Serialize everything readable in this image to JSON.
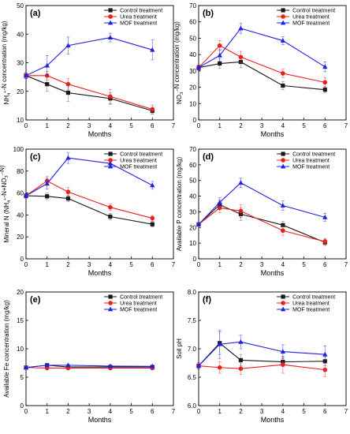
{
  "colors": {
    "control": "#1a1a1a",
    "urea": "#e8201e",
    "mof": "#1f1fe8"
  },
  "chart_data": [
    {
      "panel": "(a)",
      "type": "line",
      "ylabel_parts": [
        "NH",
        "4",
        "+",
        "-N concentration (mg/kg)"
      ],
      "xlabel": "Months",
      "xlim": [
        0,
        7
      ],
      "ylim": [
        10,
        50
      ],
      "xticks": [
        0,
        1,
        2,
        3,
        4,
        5,
        6,
        7
      ],
      "yticks": [
        10,
        20,
        30,
        40,
        50
      ],
      "legend_position": "top-right",
      "series": [
        {
          "name": "Control treatment",
          "color": "#1a1a1a",
          "marker": "square",
          "x": [
            0,
            1,
            2,
            4,
            6
          ],
          "y": [
            25.5,
            22.5,
            19.5,
            17.5,
            13.2
          ],
          "err": [
            1,
            2.5,
            3,
            2,
            1.2
          ]
        },
        {
          "name": "Urea treatment",
          "color": "#e8201e",
          "marker": "circle",
          "x": [
            0,
            1,
            2,
            4,
            6
          ],
          "y": [
            25.5,
            25.5,
            22.5,
            18.2,
            13.7
          ],
          "err": [
            1,
            1.5,
            2,
            2.5,
            1.5
          ]
        },
        {
          "name": "MOF treatment",
          "color": "#1f1fe8",
          "marker": "triangle",
          "x": [
            0,
            1,
            2,
            4,
            6
          ],
          "y": [
            25.5,
            29,
            36,
            38.8,
            34.5
          ],
          "err": [
            1,
            3.5,
            3,
            1.5,
            3.5
          ]
        }
      ]
    },
    {
      "panel": "(b)",
      "type": "line",
      "ylabel_parts": [
        "NO",
        "3",
        "-",
        "-N concentration (mg/kg)"
      ],
      "xlabel": "Months",
      "xlim": [
        0,
        7
      ],
      "ylim": [
        0,
        70
      ],
      "xticks": [
        0,
        1,
        2,
        3,
        4,
        5,
        6,
        7
      ],
      "yticks": [
        0,
        10,
        20,
        30,
        40,
        50,
        60,
        70
      ],
      "legend_position": "top-right",
      "series": [
        {
          "name": "Control treatment",
          "color": "#1a1a1a",
          "marker": "square",
          "x": [
            0,
            1,
            2,
            4,
            6
          ],
          "y": [
            32,
            34.5,
            35.5,
            21,
            18.5
          ],
          "err": [
            1.5,
            3,
            3.5,
            2.5,
            2
          ]
        },
        {
          "name": "Urea treatment",
          "color": "#e8201e",
          "marker": "circle",
          "x": [
            0,
            1,
            2,
            4,
            6
          ],
          "y": [
            32,
            45.5,
            38.5,
            28.5,
            23
          ],
          "err": [
            1.5,
            3,
            3.5,
            2.5,
            3
          ]
        },
        {
          "name": "MOF treatment",
          "color": "#1f1fe8",
          "marker": "triangle",
          "x": [
            0,
            1,
            2,
            4,
            6
          ],
          "y": [
            32,
            39.5,
            56,
            48.5,
            32.5
          ],
          "err": [
            1.5,
            3.5,
            3,
            2.5,
            3
          ]
        }
      ]
    },
    {
      "panel": "(c)",
      "type": "line",
      "ylabel_parts": [
        "Mineral N (NH",
        "4",
        "+",
        "-N+NO",
        "3",
        "-",
        "-N)"
      ],
      "xlabel": "Months",
      "xlim": [
        0,
        7
      ],
      "ylim": [
        0,
        100
      ],
      "xticks": [
        0,
        1,
        2,
        3,
        4,
        5,
        6,
        7
      ],
      "yticks": [
        0,
        20,
        40,
        60,
        80,
        100
      ],
      "legend_position": "top-right",
      "series": [
        {
          "name": "Control treatment",
          "color": "#1a1a1a",
          "marker": "square",
          "x": [
            0,
            1,
            2,
            4,
            6
          ],
          "y": [
            57.5,
            57,
            55,
            38.5,
            31.5
          ],
          "err": [
            2,
            3,
            3,
            3,
            2.5
          ]
        },
        {
          "name": "Urea treatment",
          "color": "#e8201e",
          "marker": "circle",
          "x": [
            0,
            1,
            2,
            4,
            6
          ],
          "y": [
            57.5,
            71,
            61,
            47,
            37
          ],
          "err": [
            2,
            4,
            4,
            3,
            2.5
          ]
        },
        {
          "name": "MOF treatment",
          "color": "#1f1fe8",
          "marker": "triangle",
          "x": [
            0,
            1,
            2,
            4,
            6
          ],
          "y": [
            57.5,
            68.5,
            92,
            87,
            67
          ],
          "err": [
            2,
            5,
            5,
            4,
            3.5
          ]
        }
      ]
    },
    {
      "panel": "(d)",
      "type": "line",
      "ylabel_parts": [
        "Available P concentration (mg/kg)"
      ],
      "xlabel": "Months",
      "xlim": [
        0,
        7
      ],
      "ylim": [
        0,
        70
      ],
      "xticks": [
        0,
        1,
        2,
        3,
        4,
        5,
        6,
        7
      ],
      "yticks": [
        0,
        10,
        20,
        30,
        40,
        50,
        60,
        70
      ],
      "legend_position": "top-right",
      "series": [
        {
          "name": "Control treatment",
          "color": "#1a1a1a",
          "marker": "square",
          "x": [
            0,
            1,
            2,
            4,
            6
          ],
          "y": [
            22,
            34.5,
            28.5,
            21.5,
            10.5
          ],
          "err": [
            1,
            3,
            4,
            2.5,
            2
          ]
        },
        {
          "name": "Urea treatment",
          "color": "#e8201e",
          "marker": "circle",
          "x": [
            0,
            1,
            2,
            4,
            6
          ],
          "y": [
            22,
            32.5,
            30.5,
            18,
            11
          ],
          "err": [
            1,
            3,
            4,
            3,
            2
          ]
        },
        {
          "name": "MOF treatment",
          "color": "#1f1fe8",
          "marker": "triangle",
          "x": [
            0,
            1,
            2,
            4,
            6
          ],
          "y": [
            22,
            36,
            48.5,
            34,
            26.5
          ],
          "err": [
            1,
            3,
            3,
            3,
            2.5
          ]
        }
      ]
    },
    {
      "panel": "(e)",
      "type": "line",
      "ylabel_parts": [
        "Available Fe concentration (mg/kg)"
      ],
      "xlabel": "Months",
      "xlim": [
        0,
        7
      ],
      "ylim": [
        0,
        20
      ],
      "xticks": [
        0,
        1,
        2,
        3,
        4,
        5,
        6,
        7
      ],
      "yticks": [
        0,
        5,
        10,
        15,
        20
      ],
      "legend_position": "top-right",
      "series": [
        {
          "name": "Control treatment",
          "color": "#1a1a1a",
          "marker": "square",
          "x": [
            0,
            1,
            2,
            4,
            6
          ],
          "y": [
            6.7,
            7.1,
            6.8,
            6.8,
            6.8
          ],
          "err": [
            0.15,
            0.2,
            0.2,
            0.15,
            0.2
          ]
        },
        {
          "name": "Urea treatment",
          "color": "#e8201e",
          "marker": "circle",
          "x": [
            0,
            1,
            2,
            4,
            6
          ],
          "y": [
            6.7,
            6.6,
            6.6,
            6.6,
            6.6
          ],
          "err": [
            0.15,
            0.2,
            0.2,
            0.2,
            0.2
          ]
        },
        {
          "name": "MOF treatment",
          "color": "#1f1fe8",
          "marker": "triangle",
          "x": [
            0,
            1,
            2,
            4,
            6
          ],
          "y": [
            6.7,
            7.1,
            7.1,
            6.95,
            6.9
          ],
          "err": [
            0.15,
            0.2,
            0.2,
            0.15,
            0.2
          ]
        }
      ]
    },
    {
      "panel": "(f)",
      "type": "line",
      "ylabel_parts": [
        "Soil pH"
      ],
      "xlabel": "Months",
      "xlim": [
        0,
        7
      ],
      "ylim": [
        6.0,
        8.0
      ],
      "xticks": [
        0,
        1,
        2,
        3,
        4,
        5,
        6,
        7
      ],
      "yticks": [
        6.0,
        6.5,
        7.0,
        7.5,
        8.0
      ],
      "legend_position": "top-right",
      "series": [
        {
          "name": "Control treatment",
          "color": "#1a1a1a",
          "marker": "square",
          "x": [
            0,
            1,
            2,
            4,
            6
          ],
          "y": [
            6.7,
            7.1,
            6.8,
            6.77,
            6.78
          ],
          "err": [
            0.05,
            0.2,
            0.1,
            0.08,
            0.08
          ]
        },
        {
          "name": "Urea treatment",
          "color": "#e8201e",
          "marker": "circle",
          "x": [
            0,
            1,
            2,
            4,
            6
          ],
          "y": [
            6.7,
            6.67,
            6.65,
            6.72,
            6.63
          ],
          "err": [
            0.05,
            0.1,
            0.1,
            0.15,
            0.12
          ]
        },
        {
          "name": "MOF treatment",
          "color": "#1f1fe8",
          "marker": "triangle",
          "x": [
            0,
            1,
            2,
            4,
            6
          ],
          "y": [
            6.7,
            7.08,
            7.12,
            6.95,
            6.9
          ],
          "err": [
            0.05,
            0.25,
            0.12,
            0.12,
            0.15
          ]
        }
      ]
    }
  ]
}
